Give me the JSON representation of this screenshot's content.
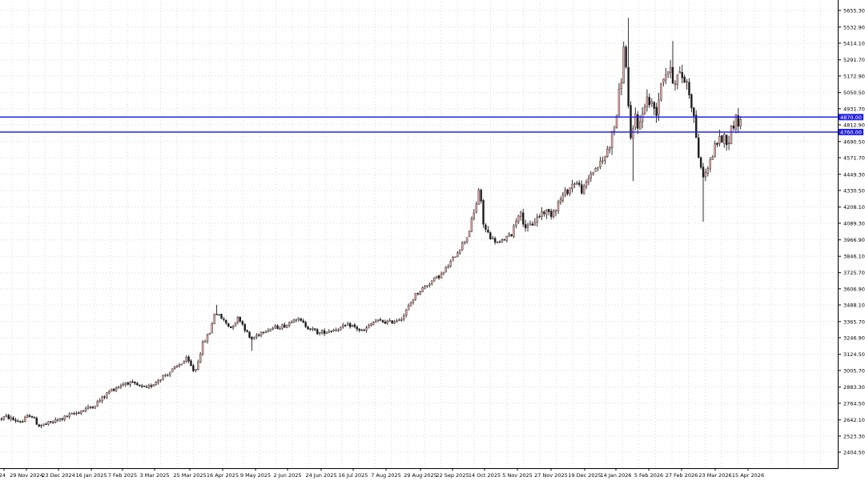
{
  "chart_data": {
    "type": "candlestick",
    "grid": true,
    "colors": {
      "bull": "#e8a6a6",
      "bear": "#1c1c1c",
      "wick": "#1c1c1c",
      "grid": "#d8d8d8",
      "axis": "#000000",
      "level_line": "#2222ee",
      "level_label_bg": "#2222ee",
      "level_label_text": "#ffffff"
    },
    "ylim": [
      2340,
      5720
    ],
    "y_ticks": [
      "5655.30",
      "5532.90",
      "5414.10",
      "5291.70",
      "5172.90",
      "5050.50",
      "4931.70",
      "4812.90",
      "4690.50",
      "4571.70",
      "4449.30",
      "4330.50",
      "4208.10",
      "4089.30",
      "3966.90",
      "3846.10",
      "3725.70",
      "3606.90",
      "3488.10",
      "3365.70",
      "3246.90",
      "3124.50",
      "3005.70",
      "2883.30",
      "2764.50",
      "2642.10",
      "2523.30",
      "2404.50"
    ],
    "x_ticks": [
      "24",
      "29 Nov 2024",
      "23 Dec 2024",
      "16 Jan 2025",
      "7 Feb 2025",
      "3 Mar 2025",
      "25 Mar 2025",
      "16 Apr 2025",
      "9 May 2025",
      "2 Jun 2025",
      "24 Jun 2025",
      "16 Jul 2025",
      "7 Aug 2025",
      "29 Aug 2025",
      "22 Sep 2025",
      "14 Oct 2025",
      "5 Nov 2025",
      "27 Nov 2025",
      "19 Dec 2025",
      "14 Jan 2026",
      "5 Feb 2026",
      "27 Feb 2026",
      "23 Mar 2026",
      "15 Apr 2026"
    ],
    "levels": [
      {
        "value": 4870.0,
        "label": "4870.00"
      },
      {
        "value": 4760.0,
        "label": "4760.00"
      }
    ],
    "price_path": [
      [
        0,
        2650
      ],
      [
        10,
        2665
      ],
      [
        20,
        2640
      ],
      [
        30,
        2630
      ],
      [
        40,
        2685
      ],
      [
        50,
        2600
      ],
      [
        60,
        2610
      ],
      [
        80,
        2655
      ],
      [
        100,
        2700
      ],
      [
        120,
        2750
      ],
      [
        140,
        2860
      ],
      [
        160,
        2920
      ],
      [
        175,
        2890
      ],
      [
        185,
        2870
      ],
      [
        200,
        2940
      ],
      [
        220,
        3020
      ],
      [
        235,
        3090
      ],
      [
        245,
        2990
      ],
      [
        255,
        3200
      ],
      [
        265,
        3300
      ],
      [
        270,
        3440
      ],
      [
        280,
        3380
      ],
      [
        290,
        3320
      ],
      [
        300,
        3400
      ],
      [
        315,
        3230
      ],
      [
        330,
        3300
      ],
      [
        345,
        3320
      ],
      [
        360,
        3340
      ],
      [
        370,
        3400
      ],
      [
        385,
        3330
      ],
      [
        400,
        3280
      ],
      [
        420,
        3310
      ],
      [
        440,
        3340
      ],
      [
        455,
        3290
      ],
      [
        470,
        3370
      ],
      [
        490,
        3360
      ],
      [
        505,
        3400
      ],
      [
        520,
        3560
      ],
      [
        540,
        3660
      ],
      [
        555,
        3720
      ],
      [
        570,
        3850
      ],
      [
        585,
        3990
      ],
      [
        595,
        4180
      ],
      [
        600,
        4350
      ],
      [
        606,
        4060
      ],
      [
        615,
        3980
      ],
      [
        625,
        3940
      ],
      [
        640,
        4010
      ],
      [
        650,
        4180
      ],
      [
        660,
        4040
      ],
      [
        670,
        4110
      ],
      [
        680,
        4180
      ],
      [
        690,
        4160
      ],
      [
        705,
        4290
      ],
      [
        720,
        4400
      ],
      [
        730,
        4320
      ],
      [
        740,
        4460
      ],
      [
        755,
        4550
      ],
      [
        765,
        4700
      ],
      [
        772,
        4900
      ],
      [
        778,
        5180
      ],
      [
        782,
        5450
      ],
      [
        786,
        4980
      ],
      [
        790,
        4640
      ],
      [
        795,
        4900
      ],
      [
        800,
        4780
      ],
      [
        808,
        5020
      ],
      [
        815,
        4960
      ],
      [
        822,
        4920
      ],
      [
        828,
        5160
      ],
      [
        836,
        5220
      ],
      [
        843,
        5150
      ],
      [
        852,
        5180
      ],
      [
        860,
        5120
      ],
      [
        866,
        4960
      ],
      [
        872,
        4700
      ],
      [
        876,
        4480
      ],
      [
        882,
        4440
      ],
      [
        890,
        4560
      ],
      [
        896,
        4680
      ],
      [
        904,
        4720
      ],
      [
        912,
        4710
      ],
      [
        918,
        4840
      ],
      [
        924,
        4850
      ]
    ]
  }
}
